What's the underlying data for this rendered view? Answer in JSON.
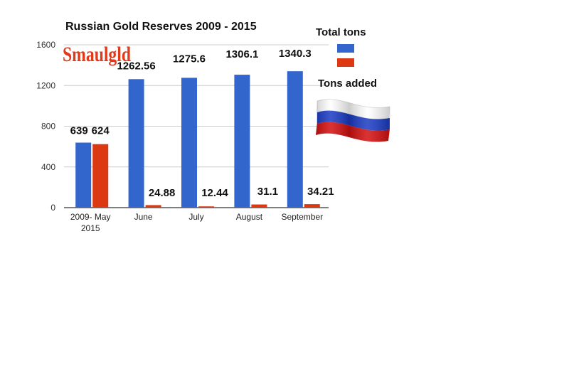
{
  "chart_data": {
    "type": "bar",
    "title": "Russian Gold Reserves 2009 - 2015",
    "categories": [
      [
        "2009- May",
        "2015"
      ],
      [
        "June"
      ],
      [
        "July"
      ],
      [
        "August"
      ],
      [
        "September"
      ]
    ],
    "series": [
      {
        "name": "Total tons",
        "color": "#3366cc",
        "values": [
          639,
          1262.56,
          1275.6,
          1306.1,
          1340.3
        ],
        "labels": [
          "639",
          "1262.56",
          "1275.6",
          "1306.1",
          "1340.3"
        ]
      },
      {
        "name": "Tons added",
        "color": "#dc3912",
        "values": [
          624,
          24.88,
          12.44,
          31.1,
          34.21
        ],
        "labels": [
          "624",
          "24.88",
          "12.44",
          "31.1",
          "34.21"
        ]
      }
    ],
    "ylim": [
      0,
      1600
    ],
    "yticks": [
      0,
      400,
      800,
      1200,
      1600
    ],
    "grid": true,
    "legend": "right"
  },
  "logo": {
    "text": "Smaulgld"
  },
  "decor": {
    "flag_colors": [
      "#ffffff",
      "#1a3bc4",
      "#d40f0f"
    ]
  }
}
